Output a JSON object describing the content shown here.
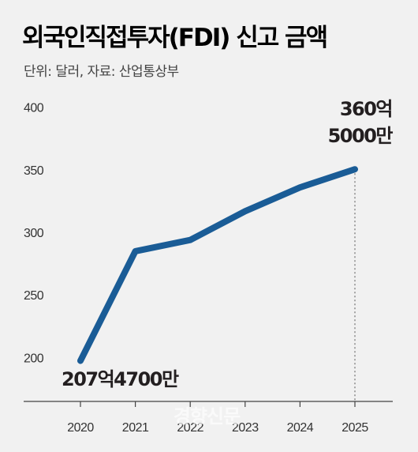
{
  "chart_data": {
    "type": "line",
    "title": "외국인직접투자(FDI) 신고 금액",
    "subtitle": "단위: 달러, 자료: 산업통상부",
    "categories": [
      "2020",
      "2021",
      "2022",
      "2023",
      "2024",
      "2025"
    ],
    "series": [
      {
        "values": [
          207.47,
          295,
          304,
          327,
          346,
          360.5
        ]
      }
    ],
    "yticks": [
      200,
      250,
      300,
      350,
      400
    ],
    "ylim": [
      175,
      420
    ],
    "grid": false,
    "color": "#1a5c96",
    "annotations": [
      {
        "category": "2020",
        "value": 207.47,
        "text": "207억4700만"
      },
      {
        "category": "2025",
        "value": 360.5,
        "lines": [
          "360억",
          "5000만"
        ]
      }
    ]
  },
  "watermark": "경향신문"
}
